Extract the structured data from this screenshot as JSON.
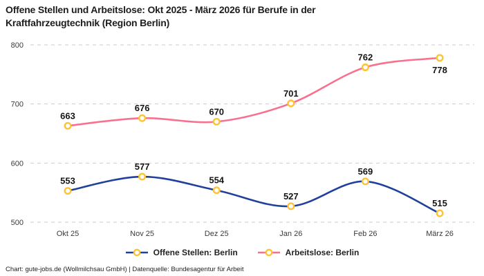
{
  "header": {
    "title_lines": [
      "Offene Stellen und Arbeitslose: Okt 2025 - März 2026 für Berufe in der",
      "Kraftfahrzeugtechnik (Region Berlin)"
    ]
  },
  "chart_data": {
    "type": "line",
    "title": "Offene Stellen und Arbeitslose: Okt 2025 - März 2026 für Berufe in der Kraftfahrzeugtechnik (Region Berlin)",
    "categories": [
      "Okt 25",
      "Nov 25",
      "Dez 25",
      "Jan 26",
      "Feb 26",
      "März 26"
    ],
    "series": [
      {
        "name": "Offene Stellen: Berlin",
        "color": "#20409a",
        "values": [
          553,
          577,
          554,
          527,
          569,
          515
        ],
        "label_positions": [
          "above",
          "above",
          "above",
          "above",
          "above",
          "above"
        ]
      },
      {
        "name": "Arbeitslose: Berlin",
        "color": "#f8708e",
        "values": [
          663,
          676,
          670,
          701,
          762,
          778
        ],
        "label_positions": [
          "above",
          "above",
          "above",
          "above",
          "above",
          "below"
        ]
      }
    ],
    "yticks": [
      800,
      700,
      600,
      500
    ],
    "ylim": [
      500,
      800
    ],
    "grid": "horizontal-dashed",
    "marker": {
      "shape": "circle",
      "stroke": "#fdc334",
      "fill": "#ffffff"
    },
    "legend_position": "bottom",
    "xlabel": "",
    "ylabel": ""
  },
  "footer": {
    "credit": "Chart: gute-jobs.de (Wollmilchsau GmbH) | Datenquelle: Bundesagentur für Arbeit"
  },
  "colors": {
    "grid": "#cbcbcb",
    "axis_text": "#3a3a3a",
    "value_text": "#141414",
    "title_text": "#1d1d1d",
    "background": "#ffffff"
  }
}
